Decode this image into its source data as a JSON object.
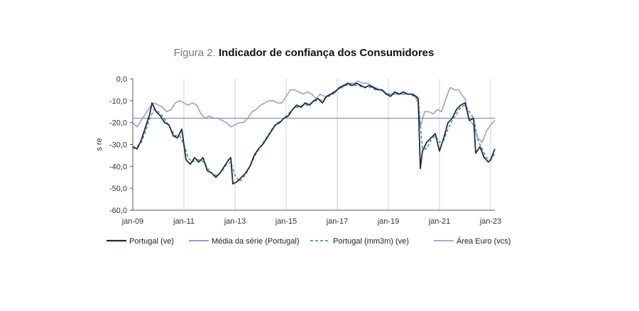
{
  "chart_data": {
    "type": "line",
    "title_label": "Figura 2.",
    "title": "Indicador de confiança dos Consumidores",
    "ylabel": "s re",
    "xlabel": "",
    "ylim": [
      -60,
      0
    ],
    "yticks": [
      "0,0",
      "-10,0",
      "-20,0",
      "-30,0",
      "-40,0",
      "-50,0",
      "-60,0"
    ],
    "xlim": [
      "2009-01",
      "2023-03"
    ],
    "xticks": [
      {
        "date": "2009-01",
        "label": "jan-09"
      },
      {
        "date": "2011-01",
        "label": "jan-11"
      },
      {
        "date": "2013-01",
        "label": "jan-13"
      },
      {
        "date": "2015-01",
        "label": "jan-15"
      },
      {
        "date": "2017-01",
        "label": "jan-17"
      },
      {
        "date": "2019-01",
        "label": "jan-19"
      },
      {
        "date": "2021-01",
        "label": "jan-21"
      },
      {
        "date": "2023-01",
        "label": "jan-23"
      }
    ],
    "grid": "vertical",
    "legend_position": "bottom",
    "series": [
      {
        "name": "Portugal (ve)",
        "color": "#1f2a44",
        "style": "solid",
        "points": [
          [
            "2009-01",
            -31
          ],
          [
            "2009-03",
            -32
          ],
          [
            "2009-05",
            -28
          ],
          [
            "2009-07",
            -22
          ],
          [
            "2009-09",
            -16
          ],
          [
            "2009-10",
            -11
          ],
          [
            "2009-12",
            -15
          ],
          [
            "2010-02",
            -17
          ],
          [
            "2010-04",
            -20
          ],
          [
            "2010-06",
            -21
          ],
          [
            "2010-08",
            -26
          ],
          [
            "2010-10",
            -27
          ],
          [
            "2010-12",
            -23
          ],
          [
            "2011-02",
            -37
          ],
          [
            "2011-04",
            -39
          ],
          [
            "2011-06",
            -36
          ],
          [
            "2011-08",
            -38
          ],
          [
            "2011-10",
            -36
          ],
          [
            "2011-12",
            -42
          ],
          [
            "2012-02",
            -43
          ],
          [
            "2012-04",
            -45
          ],
          [
            "2012-06",
            -43
          ],
          [
            "2012-08",
            -40
          ],
          [
            "2012-10",
            -37
          ],
          [
            "2012-11",
            -36
          ],
          [
            "2012-12",
            -48
          ],
          [
            "2013-02",
            -47
          ],
          [
            "2013-04",
            -45
          ],
          [
            "2013-06",
            -43
          ],
          [
            "2013-08",
            -40
          ],
          [
            "2013-10",
            -35
          ],
          [
            "2013-12",
            -32
          ],
          [
            "2014-02",
            -30
          ],
          [
            "2014-04",
            -27
          ],
          [
            "2014-06",
            -24
          ],
          [
            "2014-08",
            -21
          ],
          [
            "2014-10",
            -20
          ],
          [
            "2014-12",
            -18
          ],
          [
            "2015-02",
            -17
          ],
          [
            "2015-04",
            -14
          ],
          [
            "2015-06",
            -12
          ],
          [
            "2015-08",
            -13
          ],
          [
            "2015-10",
            -11
          ],
          [
            "2015-12",
            -12
          ],
          [
            "2016-02",
            -10
          ],
          [
            "2016-04",
            -9
          ],
          [
            "2016-06",
            -11
          ],
          [
            "2016-08",
            -8
          ],
          [
            "2016-10",
            -7
          ],
          [
            "2016-12",
            -6
          ],
          [
            "2017-02",
            -4
          ],
          [
            "2017-04",
            -3
          ],
          [
            "2017-06",
            -2
          ],
          [
            "2017-08",
            -3
          ],
          [
            "2017-10",
            -2
          ],
          [
            "2017-12",
            -3
          ],
          [
            "2018-02",
            -4
          ],
          [
            "2018-04",
            -3
          ],
          [
            "2018-06",
            -4
          ],
          [
            "2018-08",
            -5
          ],
          [
            "2018-10",
            -5
          ],
          [
            "2018-12",
            -7
          ],
          [
            "2019-02",
            -8
          ],
          [
            "2019-04",
            -6
          ],
          [
            "2019-06",
            -7
          ],
          [
            "2019-08",
            -6
          ],
          [
            "2019-10",
            -7
          ],
          [
            "2019-12",
            -7
          ],
          [
            "2020-02",
            -8
          ],
          [
            "2020-03",
            -9
          ],
          [
            "2020-04",
            -41
          ],
          [
            "2020-05",
            -33
          ],
          [
            "2020-07",
            -29
          ],
          [
            "2020-09",
            -27
          ],
          [
            "2020-11",
            -25
          ],
          [
            "2021-01",
            -33
          ],
          [
            "2021-03",
            -27
          ],
          [
            "2021-05",
            -20
          ],
          [
            "2021-07",
            -18
          ],
          [
            "2021-09",
            -14
          ],
          [
            "2021-11",
            -12
          ],
          [
            "2022-01",
            -11
          ],
          [
            "2022-03",
            -19
          ],
          [
            "2022-05",
            -18
          ],
          [
            "2022-06",
            -34
          ],
          [
            "2022-08",
            -31
          ],
          [
            "2022-10",
            -36
          ],
          [
            "2022-12",
            -38
          ],
          [
            "2023-01",
            -37
          ],
          [
            "2023-03",
            -32
          ]
        ]
      },
      {
        "name": "Média da série (Portugal)",
        "color": "#7f8fc8",
        "style": "solid",
        "points": [
          [
            "2009-01",
            -18
          ],
          [
            "2023-03",
            -18
          ]
        ]
      },
      {
        "name": "Portugal (mm3m) (ve)",
        "color": "#3a9a9a",
        "style": "dashed",
        "points": [
          [
            "2009-01",
            -32
          ],
          [
            "2009-03",
            -31
          ],
          [
            "2009-05",
            -29
          ],
          [
            "2009-07",
            -24
          ],
          [
            "2009-09",
            -18
          ],
          [
            "2009-11",
            -14
          ],
          [
            "2010-01",
            -15
          ],
          [
            "2010-03",
            -17
          ],
          [
            "2010-05",
            -20
          ],
          [
            "2010-07",
            -23
          ],
          [
            "2010-09",
            -26
          ],
          [
            "2010-11",
            -26
          ],
          [
            "2011-01",
            -30
          ],
          [
            "2011-03",
            -36
          ],
          [
            "2011-05",
            -38
          ],
          [
            "2011-07",
            -37
          ],
          [
            "2011-09",
            -37
          ],
          [
            "2011-11",
            -39
          ],
          [
            "2012-01",
            -42
          ],
          [
            "2012-03",
            -44
          ],
          [
            "2012-05",
            -44
          ],
          [
            "2012-07",
            -42
          ],
          [
            "2012-09",
            -39
          ],
          [
            "2012-11",
            -38
          ],
          [
            "2013-01",
            -44
          ],
          [
            "2013-03",
            -47
          ],
          [
            "2013-05",
            -45
          ],
          [
            "2013-07",
            -42
          ],
          [
            "2013-09",
            -38
          ],
          [
            "2013-11",
            -34
          ],
          [
            "2014-01",
            -31
          ],
          [
            "2014-03",
            -28
          ],
          [
            "2014-05",
            -25
          ],
          [
            "2014-07",
            -22
          ],
          [
            "2014-09",
            -20
          ],
          [
            "2014-11",
            -19
          ],
          [
            "2015-01",
            -17
          ],
          [
            "2015-03",
            -15
          ],
          [
            "2015-05",
            -13
          ],
          [
            "2015-07",
            -13
          ],
          [
            "2015-09",
            -12
          ],
          [
            "2015-11",
            -12
          ],
          [
            "2016-01",
            -11
          ],
          [
            "2016-03",
            -10
          ],
          [
            "2016-05",
            -10
          ],
          [
            "2016-07",
            -9
          ],
          [
            "2016-09",
            -8
          ],
          [
            "2016-11",
            -7
          ],
          [
            "2017-01",
            -5
          ],
          [
            "2017-03",
            -4
          ],
          [
            "2017-05",
            -3
          ],
          [
            "2017-07",
            -3
          ],
          [
            "2017-09",
            -3
          ],
          [
            "2017-11",
            -3
          ],
          [
            "2018-01",
            -4
          ],
          [
            "2018-03",
            -4
          ],
          [
            "2018-05",
            -4
          ],
          [
            "2018-07",
            -5
          ],
          [
            "2018-09",
            -5
          ],
          [
            "2018-11",
            -6
          ],
          [
            "2019-01",
            -7
          ],
          [
            "2019-03",
            -7
          ],
          [
            "2019-05",
            -7
          ],
          [
            "2019-07",
            -7
          ],
          [
            "2019-09",
            -7
          ],
          [
            "2019-11",
            -7
          ],
          [
            "2020-01",
            -8
          ],
          [
            "2020-03",
            -9
          ],
          [
            "2020-05",
            -32
          ],
          [
            "2020-07",
            -32
          ],
          [
            "2020-09",
            -28
          ],
          [
            "2020-11",
            -26
          ],
          [
            "2021-01",
            -29
          ],
          [
            "2021-03",
            -28
          ],
          [
            "2021-05",
            -23
          ],
          [
            "2021-07",
            -19
          ],
          [
            "2021-09",
            -16
          ],
          [
            "2021-11",
            -13
          ],
          [
            "2022-01",
            -12
          ],
          [
            "2022-03",
            -15
          ],
          [
            "2022-05",
            -18
          ],
          [
            "2022-07",
            -28
          ],
          [
            "2022-09",
            -32
          ],
          [
            "2022-11",
            -36
          ],
          [
            "2023-01",
            -37
          ],
          [
            "2023-03",
            -34
          ]
        ]
      },
      {
        "name": "Área Euro (vcs)",
        "color": "#a59ad6",
        "style": "solid",
        "points": [
          [
            "2009-01",
            -20
          ],
          [
            "2009-03",
            -22
          ],
          [
            "2009-05",
            -19
          ],
          [
            "2009-07",
            -16
          ],
          [
            "2009-09",
            -13
          ],
          [
            "2009-11",
            -11
          ],
          [
            "2010-01",
            -12
          ],
          [
            "2010-03",
            -13
          ],
          [
            "2010-05",
            -15
          ],
          [
            "2010-07",
            -14
          ],
          [
            "2010-09",
            -11
          ],
          [
            "2010-11",
            -10
          ],
          [
            "2011-01",
            -11
          ],
          [
            "2011-03",
            -12
          ],
          [
            "2011-05",
            -11
          ],
          [
            "2011-07",
            -12
          ],
          [
            "2011-09",
            -16
          ],
          [
            "2011-11",
            -18
          ],
          [
            "2012-01",
            -17
          ],
          [
            "2012-03",
            -18
          ],
          [
            "2012-05",
            -18
          ],
          [
            "2012-07",
            -19
          ],
          [
            "2012-09",
            -20
          ],
          [
            "2012-11",
            -22
          ],
          [
            "2013-01",
            -21
          ],
          [
            "2013-03",
            -20
          ],
          [
            "2013-05",
            -20
          ],
          [
            "2013-07",
            -18
          ],
          [
            "2013-09",
            -15
          ],
          [
            "2013-11",
            -14
          ],
          [
            "2014-01",
            -12
          ],
          [
            "2014-03",
            -11
          ],
          [
            "2014-05",
            -10
          ],
          [
            "2014-07",
            -10
          ],
          [
            "2014-09",
            -11
          ],
          [
            "2014-11",
            -11
          ],
          [
            "2015-01",
            -8
          ],
          [
            "2015-03",
            -5
          ],
          [
            "2015-05",
            -5
          ],
          [
            "2015-07",
            -6
          ],
          [
            "2015-09",
            -7
          ],
          [
            "2015-11",
            -6
          ],
          [
            "2016-01",
            -7
          ],
          [
            "2016-03",
            -9
          ],
          [
            "2016-05",
            -7
          ],
          [
            "2016-07",
            -8
          ],
          [
            "2016-09",
            -8
          ],
          [
            "2016-11",
            -6
          ],
          [
            "2017-01",
            -5
          ],
          [
            "2017-03",
            -4
          ],
          [
            "2017-05",
            -3
          ],
          [
            "2017-07",
            -2
          ],
          [
            "2017-09",
            -2
          ],
          [
            "2017-11",
            -1
          ],
          [
            "2018-01",
            -2
          ],
          [
            "2018-03",
            -2
          ],
          [
            "2018-05",
            -3
          ],
          [
            "2018-07",
            -4
          ],
          [
            "2018-09",
            -5
          ],
          [
            "2018-11",
            -6
          ],
          [
            "2019-01",
            -7
          ],
          [
            "2019-03",
            -7
          ],
          [
            "2019-05",
            -7
          ],
          [
            "2019-07",
            -7
          ],
          [
            "2019-09",
            -7
          ],
          [
            "2019-11",
            -7
          ],
          [
            "2020-01",
            -7
          ],
          [
            "2020-03",
            -11
          ],
          [
            "2020-04",
            -22
          ],
          [
            "2020-06",
            -15
          ],
          [
            "2020-08",
            -15
          ],
          [
            "2020-10",
            -16
          ],
          [
            "2020-12",
            -14
          ],
          [
            "2021-02",
            -15
          ],
          [
            "2021-04",
            -9
          ],
          [
            "2021-06",
            -4
          ],
          [
            "2021-08",
            -5
          ],
          [
            "2021-10",
            -5
          ],
          [
            "2021-12",
            -8
          ],
          [
            "2022-01",
            -9
          ],
          [
            "2022-03",
            -19
          ],
          [
            "2022-05",
            -21
          ],
          [
            "2022-07",
            -27
          ],
          [
            "2022-09",
            -29
          ],
          [
            "2022-11",
            -24
          ],
          [
            "2023-01",
            -21
          ],
          [
            "2023-03",
            -19
          ]
        ]
      }
    ]
  }
}
